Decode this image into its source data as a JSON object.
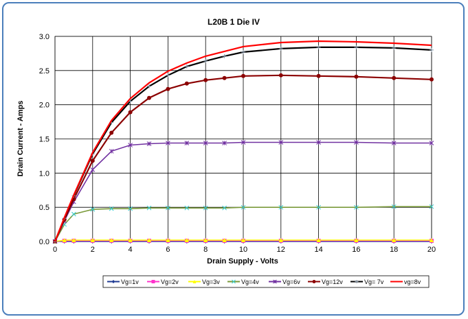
{
  "chart_data": {
    "type": "line",
    "title": "L20B 1 Die IV",
    "xlabel": "Drain  Supply - Volts",
    "ylabel": "Drain Current - Amps",
    "xlim": [
      0,
      20
    ],
    "ylim": [
      0,
      3.0
    ],
    "grid": true,
    "legend_position": "bottom",
    "xticks": [
      "0",
      "2",
      "4",
      "6",
      "8",
      "10",
      "12",
      "14",
      "16",
      "18",
      "20"
    ],
    "yticks": [
      "0.0",
      "0.5",
      "1.0",
      "1.5",
      "2.0",
      "2.5",
      "3.0"
    ],
    "series": [
      {
        "name": "Vg=1v",
        "color": "#1f3a93",
        "marker": "diamond",
        "x": [
          0,
          0.5,
          1,
          2,
          3,
          4,
          5,
          6,
          7,
          8,
          9,
          10,
          12,
          14,
          16,
          18,
          20
        ],
        "y": [
          0,
          0,
          0,
          0,
          0,
          0,
          0,
          0,
          0,
          0,
          0,
          0,
          0,
          0,
          0,
          0,
          0
        ]
      },
      {
        "name": "Vg=2v",
        "color": "#ff33cc",
        "marker": "square",
        "x": [
          0,
          0.5,
          1,
          2,
          3,
          4,
          5,
          6,
          7,
          8,
          9,
          10,
          12,
          14,
          16,
          18,
          20
        ],
        "y": [
          0,
          0.01,
          0.01,
          0.01,
          0.01,
          0.01,
          0.01,
          0.01,
          0.01,
          0.01,
          0.01,
          0.01,
          0.01,
          0.01,
          0.01,
          0.01,
          0.01
        ]
      },
      {
        "name": "Vg=3v",
        "color": "#ffff00",
        "marker": "triangle",
        "x": [
          0,
          0.5,
          1,
          2,
          3,
          4,
          5,
          6,
          7,
          8,
          9,
          10,
          12,
          14,
          16,
          18,
          20
        ],
        "y": [
          0,
          0.02,
          0.02,
          0.02,
          0.02,
          0.02,
          0.02,
          0.02,
          0.02,
          0.02,
          0.02,
          0.02,
          0.02,
          0.02,
          0.02,
          0.02,
          0.02
        ]
      },
      {
        "name": "Vg=4v",
        "color": "#33cccc",
        "line_color": "#7a9a3a",
        "marker": "x",
        "x": [
          0,
          0.5,
          1,
          2,
          3,
          4,
          5,
          6,
          7,
          8,
          9,
          10,
          12,
          14,
          16,
          18,
          20
        ],
        "y": [
          0,
          0.25,
          0.4,
          0.47,
          0.48,
          0.48,
          0.49,
          0.49,
          0.49,
          0.49,
          0.49,
          0.5,
          0.5,
          0.5,
          0.5,
          0.51,
          0.51
        ]
      },
      {
        "name": "Vg=6v",
        "color": "#7030a0",
        "marker": "star",
        "x": [
          0,
          0.5,
          1,
          2,
          3,
          4,
          5,
          6,
          7,
          8,
          9,
          10,
          12,
          14,
          16,
          18,
          20
        ],
        "y": [
          0,
          0.3,
          0.58,
          1.05,
          1.32,
          1.41,
          1.43,
          1.44,
          1.44,
          1.44,
          1.44,
          1.45,
          1.45,
          1.45,
          1.45,
          1.44,
          1.44
        ]
      },
      {
        "name": "Vg=12v",
        "color": "#8b0000",
        "marker": "circle",
        "x": [
          0,
          0.5,
          1,
          2,
          3,
          4,
          5,
          6,
          7,
          8,
          9,
          10,
          12,
          14,
          16,
          18,
          20
        ],
        "y": [
          0,
          0.32,
          0.62,
          1.18,
          1.59,
          1.89,
          2.1,
          2.23,
          2.31,
          2.36,
          2.39,
          2.42,
          2.43,
          2.42,
          2.41,
          2.39,
          2.37
        ]
      },
      {
        "name": "Vg= 7v",
        "color": "#000000",
        "marker": "plus",
        "x": [
          0,
          0.5,
          1,
          2,
          3,
          4,
          5,
          6,
          7,
          8,
          9,
          10,
          12,
          14,
          16,
          18,
          20
        ],
        "y": [
          0,
          0.34,
          0.67,
          1.28,
          1.74,
          2.05,
          2.27,
          2.43,
          2.56,
          2.64,
          2.71,
          2.77,
          2.82,
          2.84,
          2.84,
          2.83,
          2.8
        ]
      },
      {
        "name": "vg=8v",
        "color": "#ff0000",
        "marker": "none",
        "x": [
          0,
          0.5,
          1,
          2,
          3,
          4,
          5,
          6,
          7,
          8,
          9,
          10,
          12,
          14,
          16,
          18,
          20
        ],
        "y": [
          0,
          0.35,
          0.68,
          1.3,
          1.77,
          2.09,
          2.32,
          2.49,
          2.61,
          2.71,
          2.78,
          2.85,
          2.91,
          2.93,
          2.92,
          2.9,
          2.87
        ]
      }
    ]
  }
}
